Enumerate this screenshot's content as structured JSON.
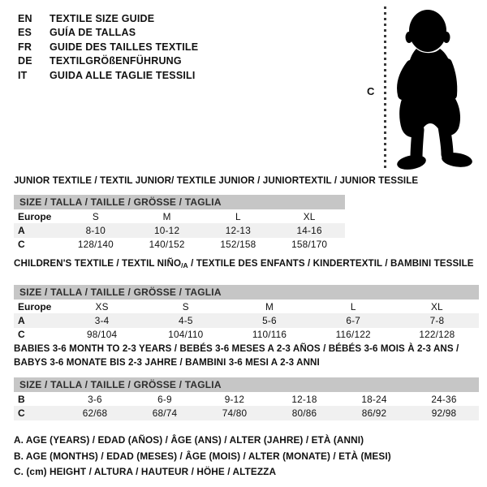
{
  "header": {
    "languages": [
      {
        "code": "EN",
        "label": "TEXTILE SIZE GUIDE"
      },
      {
        "code": "ES",
        "label": "GUÍA DE TALLAS"
      },
      {
        "code": "FR",
        "label": "GUIDE DES TAILLES TEXTILE"
      },
      {
        "code": "DE",
        "label": "TEXTILGRÖßENFÜHRUNG"
      },
      {
        "code": "IT",
        "label": "GUIDA ALLE TAGLIE TESSILI"
      }
    ]
  },
  "figure": {
    "measure_label": "C",
    "silhouette": "standing-baby"
  },
  "colors": {
    "table_header_bg": "#c6c6c6",
    "row_shaded_bg": "#f0f0f0",
    "text": "#111111",
    "silhouette": "#000000",
    "background": "#ffffff"
  },
  "sections": [
    {
      "title": "JUNIOR TEXTILE / TEXTIL JUNIOR/ TEXTILE JUNIOR / JUNIORTEXTIL / JUNIOR TESSILE",
      "size_header": "SIZE / TALLA / TAILLE / GRÖSSE / TAGLIA",
      "rows": [
        {
          "label": "Europe",
          "shaded": false,
          "values": [
            "S",
            "M",
            "L",
            "XL"
          ]
        },
        {
          "label": "A",
          "shaded": true,
          "values": [
            "8-10",
            "10-12",
            "12-13",
            "14-16"
          ]
        },
        {
          "label": "C",
          "shaded": false,
          "values": [
            "128/140",
            "140/152",
            "152/158",
            "158/170"
          ]
        }
      ]
    },
    {
      "title_before": "CHILDREN'S TEXTILE / TEXTIL NIÑO",
      "title_sub": "/A",
      "title_after": " / TEXTILE DES ENFANTS / KINDERTEXTIL / BAMBINI TESSILE",
      "size_header": "SIZE / TALLA / TAILLE / GRÖSSE / TAGLIA",
      "rows": [
        {
          "label": "Europe",
          "shaded": false,
          "values": [
            "XS",
            "S",
            "M",
            "L",
            "XL"
          ]
        },
        {
          "label": "A",
          "shaded": true,
          "values": [
            "3-4",
            "4-5",
            "5-6",
            "6-7",
            "7-8"
          ]
        },
        {
          "label": "C",
          "shaded": false,
          "values": [
            "98/104",
            "104/110",
            "110/116",
            "116/122",
            "122/128"
          ]
        }
      ]
    },
    {
      "title_lines": [
        "BABIES 3-6 MONTH TO 2-3 YEARS / BEBÉS 3-6 MESES A 2-3 AÑOS / BÉBÉS 3-6 MOIS À 2-3 ANS /",
        "BABYS 3-6 MONATE BIS 2-3 JAHRE / BAMBINI 3-6 MESI A 2-3 ANNI"
      ],
      "size_header": "SIZE / TALLA / TAILLE / GRÖSSE / TAGLIA",
      "rows": [
        {
          "label": "B",
          "shaded": false,
          "values": [
            "3-6",
            "6-9",
            "9-12",
            "12-18",
            "18-24",
            "24-36"
          ]
        },
        {
          "label": "C",
          "shaded": true,
          "values": [
            "62/68",
            "68/74",
            "74/80",
            "80/86",
            "86/92",
            "92/98"
          ]
        }
      ]
    }
  ],
  "footnotes": [
    "A. AGE (YEARS) / EDAD (AÑOS) / ÂGE (ANS) / ALTER (JAHRE) / ETÀ (ANNI)",
    "B. AGE (MONTHS) / EDAD (MESES) / ÂGE (MOIS) / ALTER (MONATE) / ETÀ (MESI)",
    "C. (cm) HEIGHT / ALTURA / HAUTEUR / HÖHE / ALTEZZA"
  ]
}
